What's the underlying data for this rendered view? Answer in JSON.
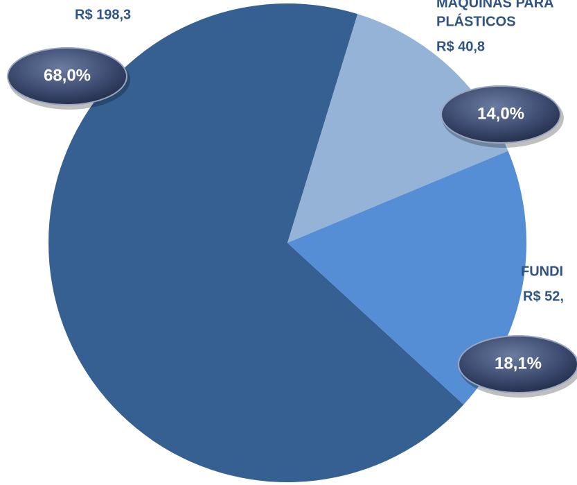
{
  "chart_data": {
    "type": "pie",
    "categories": [
      null,
      [
        "MÁQUINAS PARA",
        "PLÁSTICOS"
      ],
      [
        "FUNDI"
      ]
    ],
    "values": [
      68.0,
      14.0,
      18.1
    ],
    "value_labels": [
      "68,0%",
      "14,0%",
      "18,1%"
    ],
    "amounts": [
      198.3,
      40.8,
      52
    ],
    "amount_labels": [
      "R$ 198,3",
      "R$ 40,8",
      "R$ 52,"
    ],
    "colors": [
      "#366092",
      "#95b3d7",
      "#558ed5"
    ]
  }
}
